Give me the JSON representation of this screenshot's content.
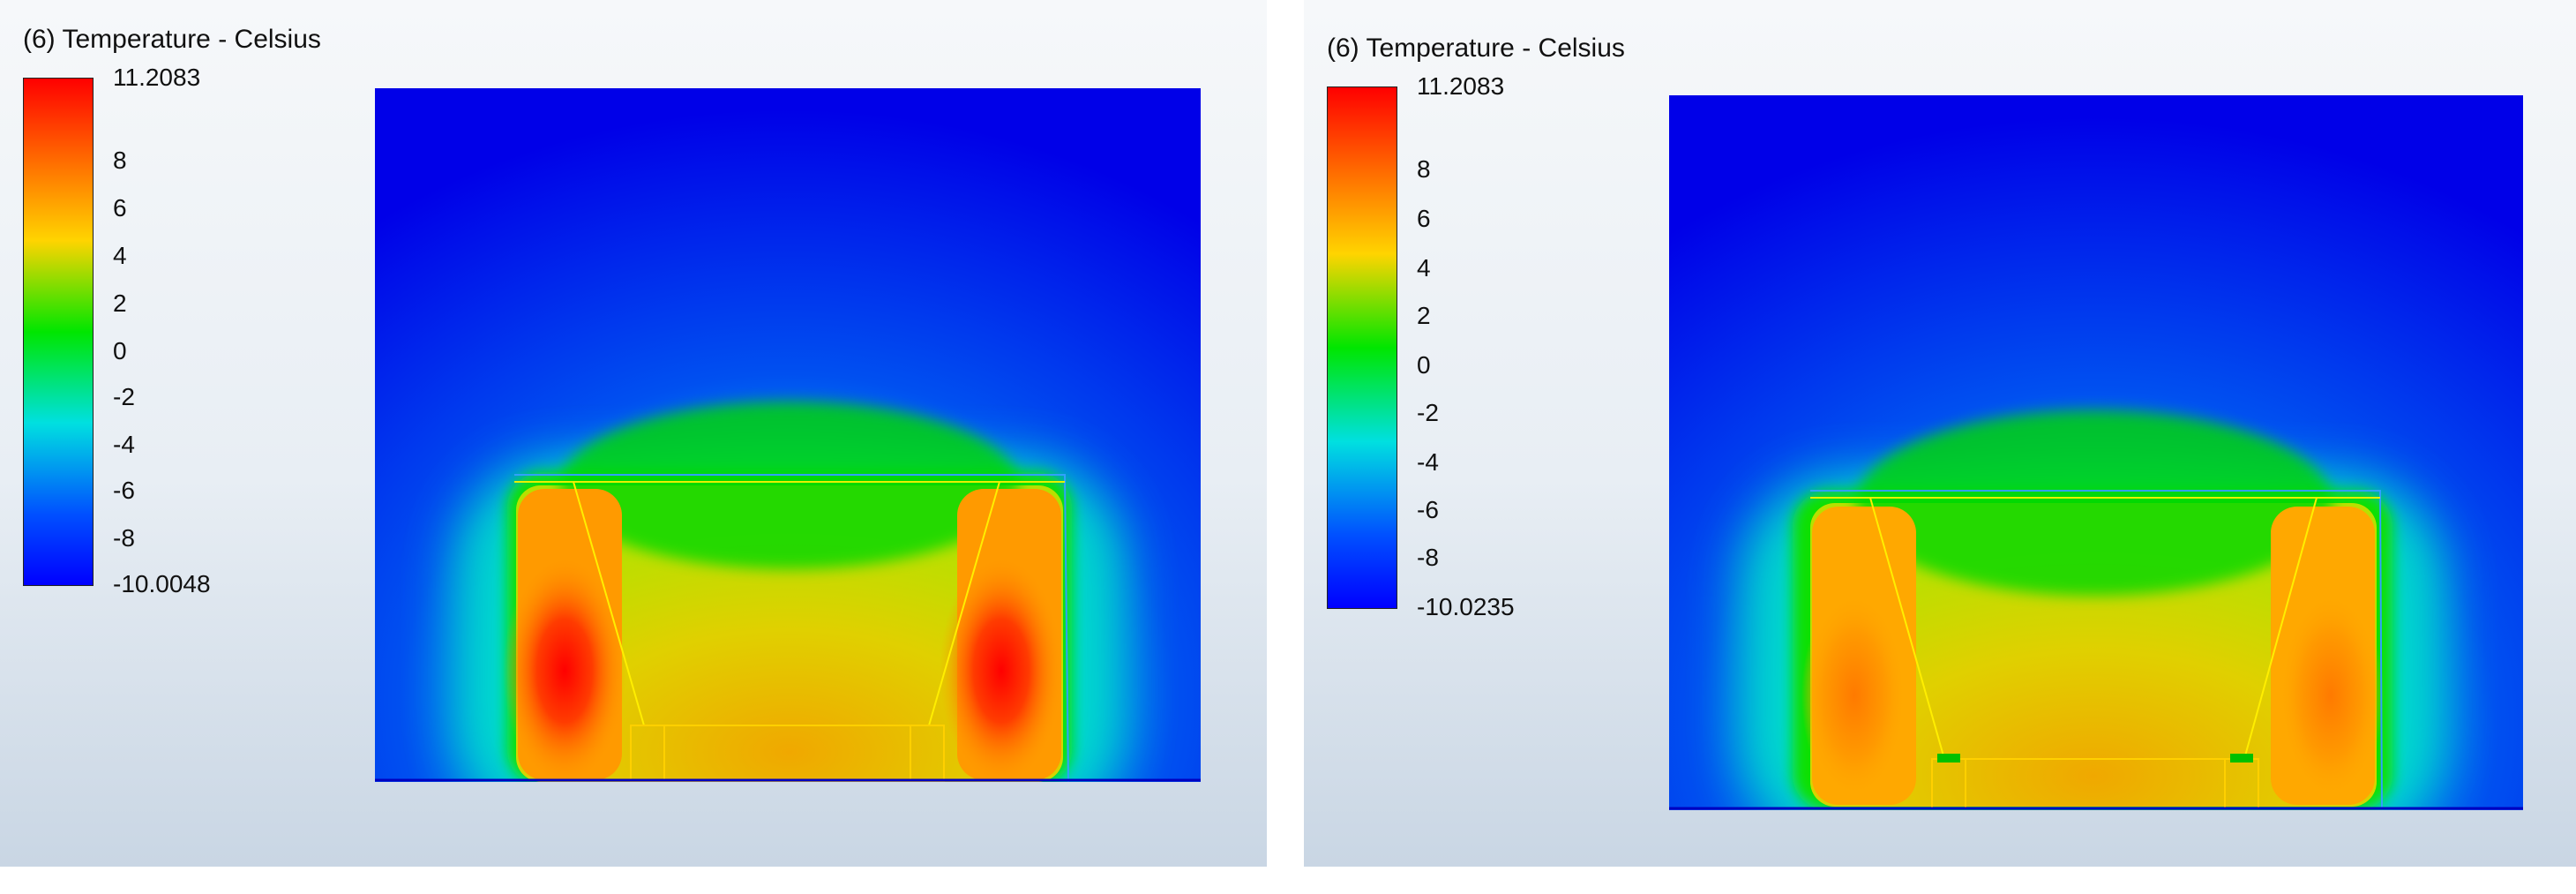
{
  "chart_data": [
    {
      "type": "heatmap",
      "title": "(6) Temperature - Celsius",
      "colorbar": {
        "max_label": "11.2083",
        "min_label": "-10.0048",
        "range": [
          -10.0048,
          11.2083
        ],
        "ticks": [
          "8",
          "6",
          "4",
          "2",
          "0",
          "-2",
          "-4",
          "-6",
          "-8"
        ],
        "tick_values": [
          8,
          6,
          4,
          2,
          0,
          -2,
          -4,
          -6,
          -8
        ]
      },
      "field": {
        "background_value": -10,
        "outer_envelope_value": 2,
        "top_band_value": 1,
        "inner_value": 5.5,
        "hotspot_value": 11.2
      },
      "colors": {
        "red": "#ff0000",
        "orange": "#ff8c00",
        "yellow": "#ffe600",
        "green": "#00e600",
        "cyan": "#00e0e0",
        "blue": "#0000ff"
      }
    },
    {
      "type": "heatmap",
      "title": "(6) Temperature - Celsius",
      "colorbar": {
        "max_label": "11.2083",
        "min_label": "-10.0235",
        "range": [
          -10.0235,
          11.2083
        ],
        "ticks": [
          "8",
          "6",
          "4",
          "2",
          "0",
          "-2",
          "-4",
          "-6",
          "-8"
        ],
        "tick_values": [
          8,
          6,
          4,
          2,
          0,
          -2,
          -4,
          -6,
          -8
        ]
      },
      "field": {
        "background_value": -10,
        "outer_envelope_value": 2,
        "top_band_value": 1,
        "inner_value": 5,
        "hotspot_value": 7.5
      },
      "colors": {
        "red": "#ff0000",
        "orange": "#ff8c00",
        "yellow": "#ffe600",
        "green": "#00e600",
        "cyan": "#00e0e0",
        "blue": "#0000ff"
      }
    }
  ]
}
